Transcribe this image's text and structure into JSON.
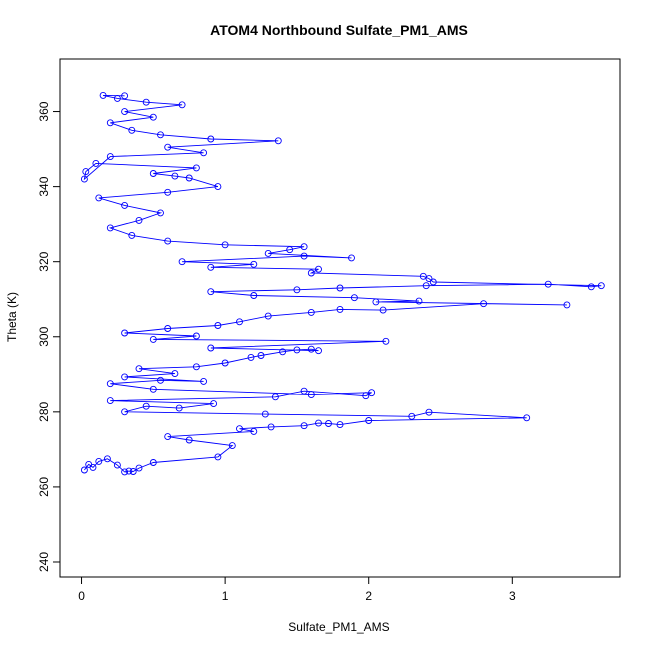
{
  "chart_data": {
    "type": "scatter",
    "title": "ATOM4 Northbound Sulfate_PM1_AMS",
    "xlabel": "Sulfate_PM1_AMS",
    "ylabel": "Theta (K)",
    "xlim": [
      -0.15,
      3.75
    ],
    "ylim": [
      236,
      374
    ],
    "x_ticks": [
      0,
      1,
      2,
      3
    ],
    "y_ticks": [
      240,
      260,
      280,
      300,
      320,
      340,
      360
    ],
    "marker": "open-circle",
    "connected_by_lines": true,
    "grid": false,
    "legend": "none",
    "series": [
      {
        "color": "#0000ff",
        "points": [
          [
            0.02,
            264.5
          ],
          [
            0.05,
            266
          ],
          [
            0.08,
            265.2
          ],
          [
            0.12,
            266.8
          ],
          [
            0.18,
            267.5
          ],
          [
            0.25,
            265.8
          ],
          [
            0.3,
            264
          ],
          [
            0.33,
            264.2
          ],
          [
            0.36,
            264.1
          ],
          [
            0.4,
            265
          ],
          [
            0.5,
            266.5
          ],
          [
            0.95,
            268
          ],
          [
            1.05,
            271
          ],
          [
            0.75,
            272.5
          ],
          [
            0.6,
            273.4
          ],
          [
            1.2,
            274.8
          ],
          [
            1.1,
            275.5
          ],
          [
            1.32,
            276
          ],
          [
            1.55,
            276.3
          ],
          [
            1.65,
            277
          ],
          [
            1.72,
            276.9
          ],
          [
            1.8,
            276.6
          ],
          [
            2.0,
            277.7
          ],
          [
            3.1,
            278.4
          ],
          [
            2.42,
            279.9
          ],
          [
            2.3,
            278.8
          ],
          [
            1.28,
            279.4
          ],
          [
            0.3,
            280
          ],
          [
            0.45,
            281.5
          ],
          [
            0.68,
            281
          ],
          [
            0.92,
            282.2
          ],
          [
            0.2,
            283
          ],
          [
            1.35,
            284
          ],
          [
            1.55,
            285.5
          ],
          [
            1.98,
            284.3
          ],
          [
            2.02,
            285.1
          ],
          [
            1.6,
            284.6
          ],
          [
            0.5,
            286
          ],
          [
            0.2,
            287.5
          ],
          [
            0.55,
            288.4
          ],
          [
            0.85,
            288.1
          ],
          [
            0.3,
            289.3
          ],
          [
            0.65,
            290.2
          ],
          [
            0.4,
            291.5
          ],
          [
            0.8,
            292
          ],
          [
            1.0,
            293
          ],
          [
            1.18,
            294.5
          ],
          [
            1.25,
            295
          ],
          [
            1.4,
            296
          ],
          [
            1.5,
            296.5
          ],
          [
            1.6,
            296.7
          ],
          [
            1.65,
            296.3
          ],
          [
            0.9,
            297
          ],
          [
            2.12,
            298.8
          ],
          [
            0.5,
            299.3
          ],
          [
            0.8,
            300.2
          ],
          [
            0.3,
            301
          ],
          [
            0.6,
            302.2
          ],
          [
            0.95,
            303
          ],
          [
            1.1,
            304
          ],
          [
            1.3,
            305.5
          ],
          [
            1.6,
            306.5
          ],
          [
            1.8,
            307.3
          ],
          [
            2.1,
            307.1
          ],
          [
            2.8,
            308.8
          ],
          [
            3.38,
            308.5
          ],
          [
            2.05,
            309.3
          ],
          [
            2.35,
            309.5
          ],
          [
            1.9,
            310.4
          ],
          [
            1.2,
            311
          ],
          [
            0.9,
            312
          ],
          [
            1.5,
            312.5
          ],
          [
            1.8,
            313
          ],
          [
            2.4,
            313.6
          ],
          [
            3.25,
            314
          ],
          [
            3.55,
            313.3
          ],
          [
            3.62,
            313.6
          ],
          [
            2.45,
            314.6
          ],
          [
            2.42,
            315.5
          ],
          [
            2.38,
            316.1
          ],
          [
            1.6,
            317
          ],
          [
            1.65,
            318
          ],
          [
            0.9,
            318.5
          ],
          [
            1.2,
            319.3
          ],
          [
            0.7,
            320
          ],
          [
            1.55,
            321.5
          ],
          [
            1.88,
            321
          ],
          [
            1.3,
            322.2
          ],
          [
            1.45,
            323.2
          ],
          [
            1.55,
            324
          ],
          [
            1.0,
            324.5
          ],
          [
            0.6,
            325.5
          ],
          [
            0.35,
            327
          ],
          [
            0.2,
            329
          ],
          [
            0.4,
            331
          ],
          [
            0.55,
            333
          ],
          [
            0.3,
            335
          ],
          [
            0.12,
            337
          ],
          [
            0.6,
            338.5
          ],
          [
            0.95,
            340
          ],
          [
            0.75,
            342.3
          ],
          [
            0.65,
            342.8
          ],
          [
            0.5,
            343.5
          ],
          [
            0.8,
            345
          ],
          [
            0.1,
            346.2
          ],
          [
            0.03,
            344
          ],
          [
            0.02,
            342
          ],
          [
            0.2,
            348
          ],
          [
            0.85,
            349
          ],
          [
            0.6,
            350.5
          ],
          [
            1.37,
            352.2
          ],
          [
            0.9,
            352.7
          ],
          [
            0.55,
            353.8
          ],
          [
            0.35,
            355
          ],
          [
            0.2,
            357
          ],
          [
            0.5,
            358.5
          ],
          [
            0.3,
            360
          ],
          [
            0.7,
            361.8
          ],
          [
            0.45,
            362.5
          ],
          [
            0.25,
            363.5
          ],
          [
            0.15,
            364.3
          ],
          [
            0.3,
            364.2
          ]
        ]
      }
    ]
  }
}
